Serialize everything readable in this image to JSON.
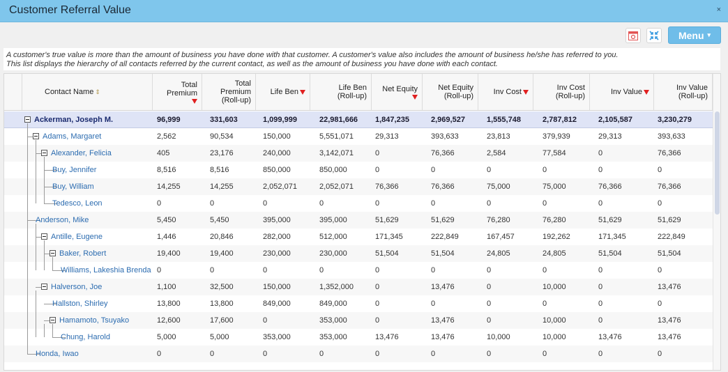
{
  "window": {
    "title": "Customer Referral Value",
    "close_symbol": "×"
  },
  "toolbar": {
    "calendar_icon": "calendar-icon",
    "collapse_icon": "collapse-icon",
    "menu_label": "Menu",
    "menu_caret": "▾"
  },
  "description": {
    "line1": "A customer's true value is more than the amount of business you have done with that customer. A customer's value also includes the amount of business he/she has referred to you.",
    "line2": "This list displays the hierarchy of all contacts referred by the current contact, as well as the amount of business you have done with each contact."
  },
  "columns": {
    "contact": "Contact Name",
    "total_premium": [
      "Total",
      "Premium"
    ],
    "total_premium_rollup": [
      "Total",
      "Premium",
      "(Roll-up)"
    ],
    "life_ben": "Life Ben",
    "life_ben_rollup": [
      "Life Ben",
      "(Roll-up)"
    ],
    "net_equity": "Net Equity",
    "net_equity_rollup": [
      "Net Equity",
      "(Roll-up)"
    ],
    "inv_cost": "Inv Cost",
    "inv_cost_rollup": [
      "Inv Cost",
      "(Roll-up)"
    ],
    "inv_value": "Inv Value",
    "inv_value_rollup": [
      "Inv Value",
      "(Roll-up)"
    ]
  },
  "rows": [
    {
      "name": "Ackerman, Joseph M.",
      "v": [
        "96,999",
        "331,603",
        "1,099,999",
        "22,981,666",
        "1,847,235",
        "2,969,527",
        "1,555,748",
        "2,787,812",
        "2,105,587",
        "3,230,279"
      ]
    },
    {
      "name": "Adams, Margaret",
      "v": [
        "2,562",
        "90,534",
        "150,000",
        "5,551,071",
        "29,313",
        "393,633",
        "23,813",
        "379,939",
        "29,313",
        "393,633"
      ]
    },
    {
      "name": "Alexander, Felicia",
      "v": [
        "405",
        "23,176",
        "240,000",
        "3,142,071",
        "0",
        "76,366",
        "2,584",
        "77,584",
        "0",
        "76,366"
      ]
    },
    {
      "name": "Buy, Jennifer",
      "v": [
        "8,516",
        "8,516",
        "850,000",
        "850,000",
        "0",
        "0",
        "0",
        "0",
        "0",
        "0"
      ]
    },
    {
      "name": "Buy, William",
      "v": [
        "14,255",
        "14,255",
        "2,052,071",
        "2,052,071",
        "76,366",
        "76,366",
        "75,000",
        "75,000",
        "76,366",
        "76,366"
      ]
    },
    {
      "name": "Tedesco, Leon",
      "v": [
        "0",
        "0",
        "0",
        "0",
        "0",
        "0",
        "0",
        "0",
        "0",
        "0"
      ]
    },
    {
      "name": "Anderson, Mike",
      "v": [
        "5,450",
        "5,450",
        "395,000",
        "395,000",
        "51,629",
        "51,629",
        "76,280",
        "76,280",
        "51,629",
        "51,629"
      ]
    },
    {
      "name": "Antille, Eugene",
      "v": [
        "1,446",
        "20,846",
        "282,000",
        "512,000",
        "171,345",
        "222,849",
        "167,457",
        "192,262",
        "171,345",
        "222,849"
      ]
    },
    {
      "name": "Baker, Robert",
      "v": [
        "19,400",
        "19,400",
        "230,000",
        "230,000",
        "51,504",
        "51,504",
        "24,805",
        "24,805",
        "51,504",
        "51,504"
      ]
    },
    {
      "name": "Williams, Lakeshia Brenda",
      "v": [
        "0",
        "0",
        "0",
        "0",
        "0",
        "0",
        "0",
        "0",
        "0",
        "0"
      ]
    },
    {
      "name": "Halverson, Joe",
      "v": [
        "1,100",
        "32,500",
        "150,000",
        "1,352,000",
        "0",
        "13,476",
        "0",
        "10,000",
        "0",
        "13,476"
      ]
    },
    {
      "name": "Hallston, Shirley",
      "v": [
        "13,800",
        "13,800",
        "849,000",
        "849,000",
        "0",
        "0",
        "0",
        "0",
        "0",
        "0"
      ]
    },
    {
      "name": "Hamamoto, Tsuyako",
      "v": [
        "12,600",
        "17,600",
        "0",
        "353,000",
        "0",
        "13,476",
        "0",
        "10,000",
        "0",
        "13,476"
      ]
    },
    {
      "name": "Chung, Harold",
      "v": [
        "5,000",
        "5,000",
        "353,000",
        "353,000",
        "13,476",
        "13,476",
        "10,000",
        "10,000",
        "13,476",
        "13,476"
      ]
    },
    {
      "name": "Honda, Iwao",
      "v": [
        "0",
        "0",
        "0",
        "0",
        "0",
        "0",
        "0",
        "0",
        "0",
        "0"
      ]
    }
  ]
}
